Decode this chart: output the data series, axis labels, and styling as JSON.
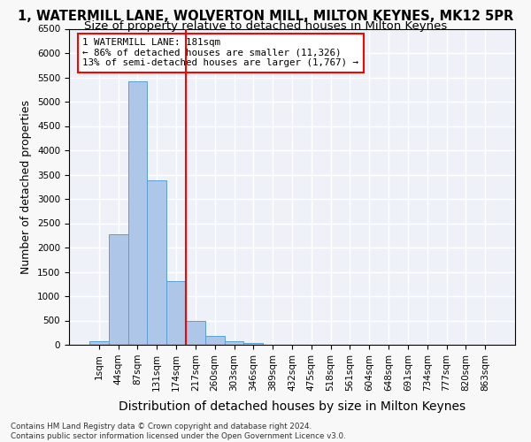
{
  "title_line1": "1, WATERMILL LANE, WOLVERTON MILL, MILTON KEYNES, MK12 5PR",
  "title_line2": "Size of property relative to detached houses in Milton Keynes",
  "xlabel": "Distribution of detached houses by size in Milton Keynes",
  "ylabel": "Number of detached properties",
  "footnote": "Contains HM Land Registry data © Crown copyright and database right 2024.\nContains public sector information licensed under the Open Government Licence v3.0.",
  "bin_labels": [
    "1sqm",
    "44sqm",
    "87sqm",
    "131sqm",
    "174sqm",
    "217sqm",
    "260sqm",
    "303sqm",
    "346sqm",
    "389sqm",
    "432sqm",
    "475sqm",
    "518sqm",
    "561sqm",
    "604sqm",
    "648sqm",
    "691sqm",
    "734sqm",
    "777sqm",
    "820sqm",
    "863sqm"
  ],
  "bar_values": [
    80,
    2270,
    5420,
    3380,
    1310,
    490,
    190,
    80,
    30,
    0,
    0,
    0,
    0,
    0,
    0,
    0,
    0,
    0,
    0,
    0,
    0
  ],
  "bar_color": "#aec6e8",
  "bar_edge_color": "#5a9fd4",
  "vline_color": "red",
  "vline_pos": 4.5,
  "annotation_text": "1 WATERMILL LANE: 181sqm\n← 86% of detached houses are smaller (11,326)\n13% of semi-detached houses are larger (1,767) →",
  "annotation_box_color": "red",
  "ylim": [
    0,
    6500
  ],
  "yticks": [
    0,
    500,
    1000,
    1500,
    2000,
    2500,
    3000,
    3500,
    4000,
    4500,
    5000,
    5500,
    6000,
    6500
  ],
  "bg_color": "#eef2f8",
  "grid_color": "white",
  "title_fontsize": 10.5,
  "subtitle_fontsize": 9.5,
  "axis_label_fontsize": 9,
  "tick_fontsize": 7.5
}
